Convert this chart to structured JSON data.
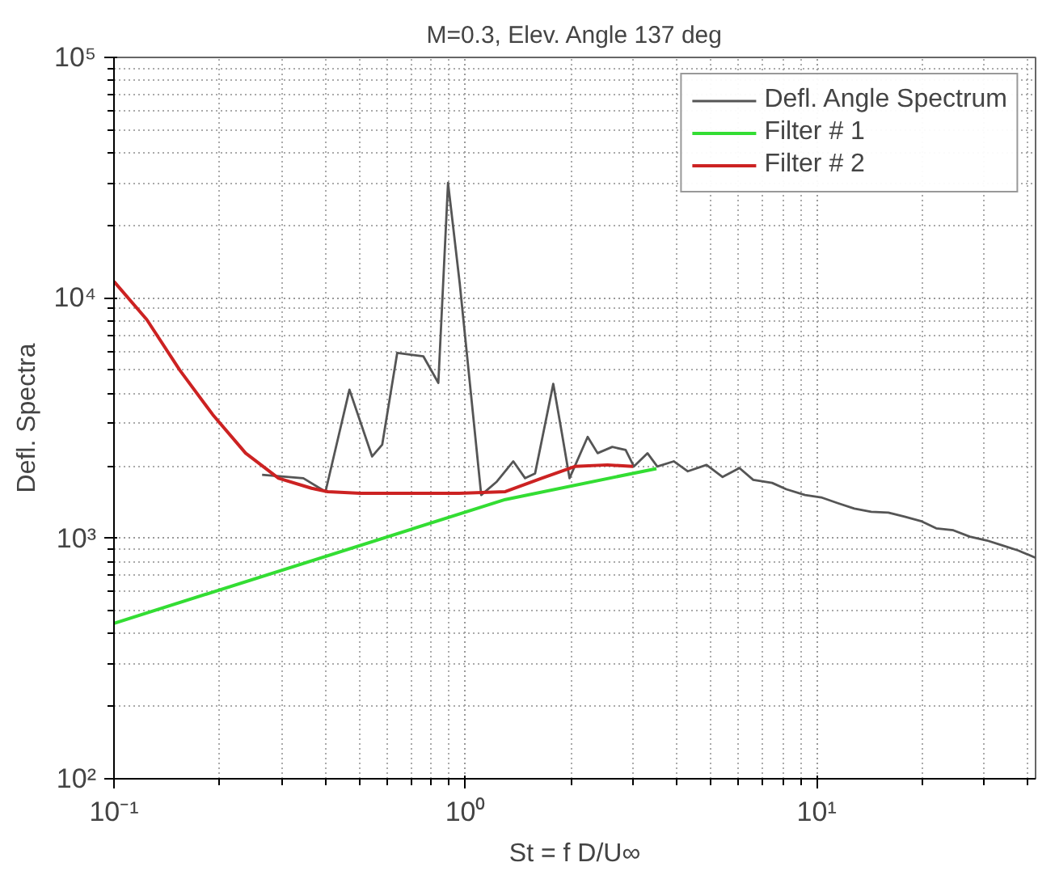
{
  "chart_data": {
    "type": "line",
    "title": "M=0.3, Elev. Angle 137 deg",
    "xlabel": "St = f D/U∞",
    "ylabel": "Defl. Spectra",
    "log": "xy",
    "grid": true,
    "legend": "top right",
    "xlim": [
      0.1,
      42
    ],
    "ylim": [
      100,
      100000
    ],
    "xticks": [
      {
        "value": 0.1,
        "label": "10⁻¹"
      },
      {
        "value": 1,
        "label": "10⁰"
      },
      {
        "value": 10,
        "label": "10¹"
      }
    ],
    "yticks": [
      {
        "value": 100,
        "label": "10²"
      },
      {
        "value": 1000,
        "label": "10³"
      },
      {
        "value": 10000,
        "label": "10⁴"
      },
      {
        "value": 100000,
        "label": "10⁵"
      }
    ],
    "series": [
      {
        "name": "Defl. Angle Spectrum",
        "color": "#555555",
        "x": [
          0.264,
          0.346,
          0.4,
          0.468,
          0.543,
          0.58,
          0.64,
          0.76,
          0.838,
          0.893,
          0.964,
          1.11,
          1.23,
          1.37,
          1.48,
          1.58,
          1.78,
          1.88,
          1.98,
          2.23,
          2.38,
          2.62,
          2.86,
          3.02,
          3.3,
          3.52,
          3.92,
          4.3,
          4.86,
          5.4,
          6.03,
          6.6,
          7.47,
          8.2,
          9.27,
          10.3,
          11.5,
          12.8,
          14.3,
          16.0,
          17.8,
          19.8,
          21.9,
          24.5,
          27.3,
          30.5,
          33.9,
          37.5,
          42
        ],
        "values": [
          1837,
          1778,
          1563,
          4150,
          2190,
          2450,
          5900,
          5710,
          4430,
          30100,
          11500,
          1514,
          1722,
          2090,
          1778,
          1862,
          4390,
          2780,
          1778,
          2640,
          2260,
          2400,
          2330,
          1990,
          2260,
          1990,
          2090,
          1900,
          2020,
          1800,
          1960,
          1750,
          1700,
          1600,
          1514,
          1480,
          1400,
          1330,
          1290,
          1280,
          1230,
          1180,
          1100,
          1080,
          1016,
          980,
          933,
          890,
          830
        ]
      },
      {
        "name": "Filter # 1",
        "color": "#33dd33",
        "x": [
          0.1,
          1.3,
          3.5
        ],
        "values": [
          443,
          1450,
          1950
        ]
      },
      {
        "name": "Filter # 2",
        "color": "#cc2222",
        "x": [
          0.1,
          0.124,
          0.154,
          0.191,
          0.237,
          0.294,
          0.365,
          0.406,
          0.503,
          0.7,
          0.96,
          1.3,
          1.65,
          2.05,
          2.54,
          3.0
        ],
        "values": [
          11700,
          8120,
          5000,
          3270,
          2260,
          1778,
          1615,
          1563,
          1538,
          1538,
          1538,
          1563,
          1778,
          1990,
          2020,
          1990
        ]
      }
    ]
  }
}
